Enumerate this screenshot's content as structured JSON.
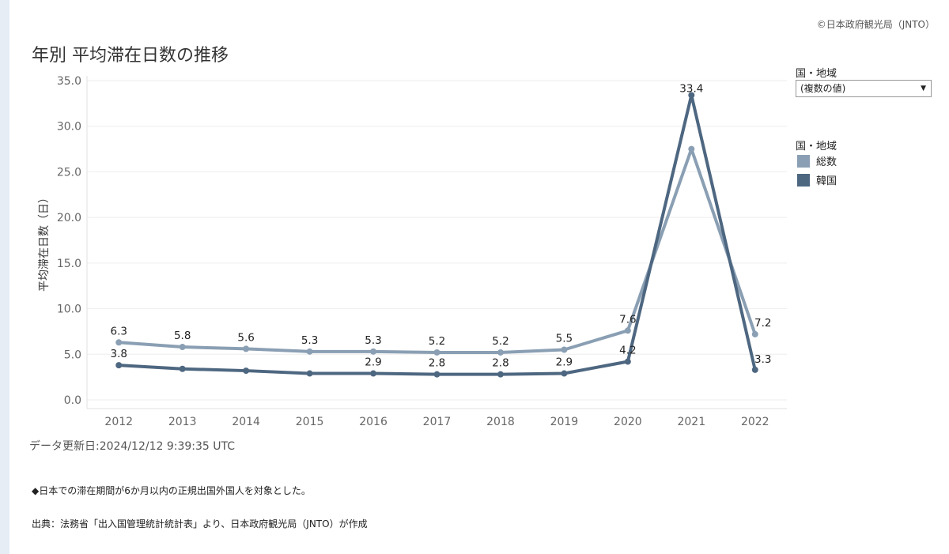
{
  "copyright": "©日本政府観光局（JNTO）",
  "title": "年別 平均滞在日数の推移",
  "filter": {
    "label": "国・地域",
    "value": "(複数の値)"
  },
  "legend": {
    "title": "国・地域",
    "items": [
      {
        "name": "総数",
        "color": "#8a9fb3"
      },
      {
        "name": "韓国",
        "color": "#4e6781"
      }
    ]
  },
  "updated": "データ更新日:2024/12/12 9:39:35 UTC",
  "notes": [
    "◆日本での滞在期間が6か月以内の正規出国外国人を対象とした。",
    "出典：法務省「出入国管理統計統計表」より、日本政府観光局（JNTO）が作成"
  ],
  "chart_data": {
    "type": "line",
    "title": "年別 平均滞在日数の推移",
    "xlabel": "",
    "ylabel": "平均滞在日数（日）",
    "ylim": [
      0,
      35
    ],
    "yticks": [
      "0.0",
      "5.0",
      "10.0",
      "15.0",
      "20.0",
      "25.0",
      "30.0",
      "35.0"
    ],
    "categories": [
      "2012",
      "2013",
      "2014",
      "2015",
      "2016",
      "2017",
      "2018",
      "2019",
      "2020",
      "2021",
      "2022"
    ],
    "series": [
      {
        "name": "総数",
        "color": "#8a9fb3",
        "values": [
          6.3,
          5.8,
          5.6,
          5.3,
          5.3,
          5.2,
          5.2,
          5.5,
          7.6,
          27.5,
          7.2
        ],
        "labels": [
          "6.3",
          "5.8",
          "5.6",
          "5.3",
          "5.3",
          "5.2",
          "5.2",
          "5.5",
          "7.6",
          "",
          "7.2"
        ]
      },
      {
        "name": "韓国",
        "color": "#4e6781",
        "values": [
          3.8,
          3.4,
          3.2,
          2.9,
          2.9,
          2.8,
          2.8,
          2.9,
          4.2,
          33.4,
          3.3
        ],
        "labels": [
          "3.8",
          "",
          "",
          "",
          "2.9",
          "2.8",
          "2.8",
          "2.9",
          "4.2",
          "33.4",
          "3.3"
        ]
      }
    ]
  }
}
